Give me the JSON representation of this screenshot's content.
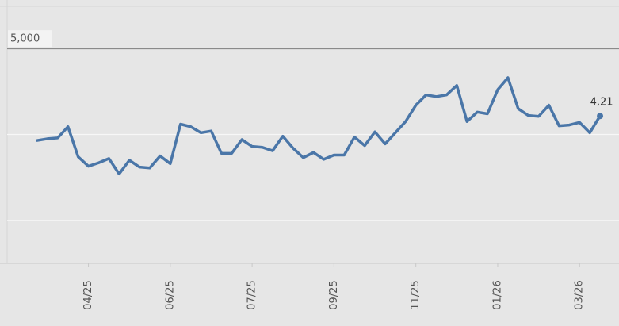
{
  "chart_data": {
    "type": "line",
    "categories": [
      null,
      null,
      null,
      null,
      null,
      "04/25",
      null,
      null,
      null,
      null,
      null,
      null,
      null,
      "06/25",
      null,
      null,
      null,
      null,
      null,
      null,
      null,
      "07/25",
      null,
      null,
      null,
      null,
      null,
      null,
      null,
      "09/25",
      null,
      null,
      null,
      null,
      null,
      null,
      null,
      "11/25",
      null,
      null,
      null,
      null,
      null,
      null,
      null,
      "01/26",
      null,
      null,
      null,
      null,
      null,
      null,
      null,
      "03/26",
      null,
      null
    ],
    "series": [
      {
        "color": "#4a76a8",
        "values": [
          3930,
          3950,
          3960,
          4090,
          3740,
          3630,
          3670,
          3720,
          3540,
          3700,
          3620,
          3610,
          3750,
          3660,
          4120,
          4090,
          4020,
          4040,
          3780,
          3780,
          3940,
          3860,
          3850,
          3810,
          3980,
          3840,
          3730,
          3790,
          3710,
          3760,
          3760,
          3970,
          3870,
          4030,
          3890,
          4020,
          4150,
          4340,
          4460,
          4440,
          4460,
          4570,
          4150,
          4260,
          4240,
          4520,
          4660,
          4300,
          4220,
          4210,
          4340,
          4100,
          4110,
          4140,
          4020,
          4215
        ],
        "value_labels": {
          "55": "4,21"
        }
      }
    ],
    "ylim": [
      2500,
      5500
    ],
    "reference_line": {
      "value": 5000,
      "label": "5,000"
    },
    "grid_lines": [
      3000,
      4000
    ]
  }
}
